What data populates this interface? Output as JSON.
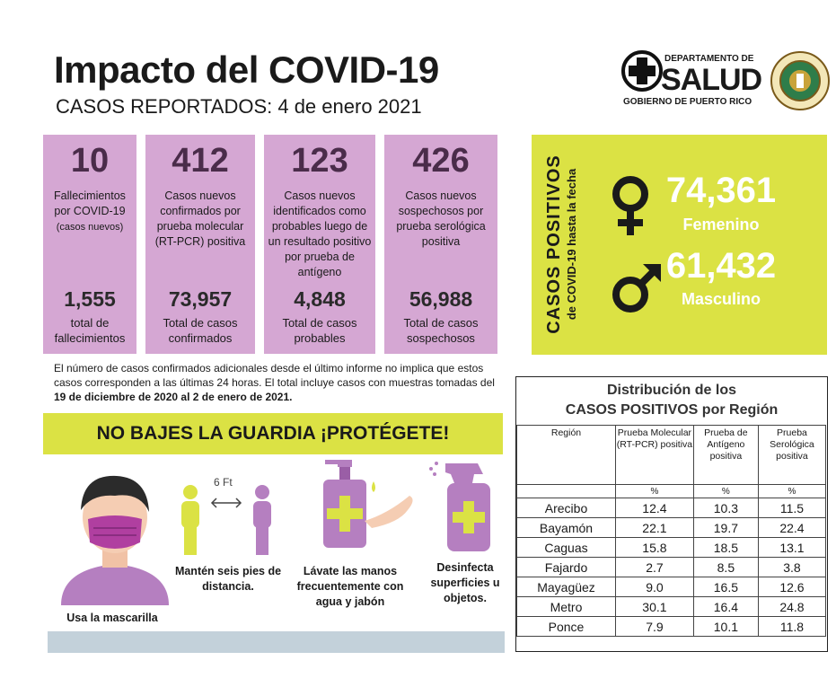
{
  "header": {
    "title": "Impacto del COVID-19",
    "subtitle": "CASOS REPORTADOS: 4 de enero 2021",
    "logo": {
      "line1": "DEPARTAMENTO DE",
      "line2": "SALUD",
      "line3": "GOBIERNO DE PUERTO RICO"
    }
  },
  "stats": [
    {
      "big": "10",
      "desc": "Fallecimientos por COVID-19",
      "desc_small": "(casos nuevos)",
      "total": "1,555",
      "total_label": "total de fallecimientos"
    },
    {
      "big": "412",
      "desc": "Casos nuevos confirmados por prueba molecular (RT-PCR) positiva",
      "total": "73,957",
      "total_label": "Total de casos confirmados"
    },
    {
      "big": "123",
      "desc": "Casos nuevos identificados como probables luego de un resultado positivo por prueba de antígeno",
      "total": "4,848",
      "total_label": "Total de casos probables"
    },
    {
      "big": "426",
      "desc": "Casos nuevos sospechosos por prueba serológica positiva",
      "total": "56,988",
      "total_label": "Total de casos sospechosos"
    }
  ],
  "positives": {
    "vertical_title": "CASOS POSITIVOS",
    "vertical_subtitle": "de COVID-19 hasta la fecha",
    "female_value": "74,361",
    "female_label": "Femenino",
    "male_value": "61,432",
    "male_label": "Masculino",
    "color": "#dbe244"
  },
  "note": {
    "text": "El número de casos confirmados adicionales desde el último informe no implica que estos casos corresponden a las últimas 24 horas.  El total incluye casos con muestras tomadas del ",
    "dates": "19 de diciembre de 2020 al 2 de enero de 2021."
  },
  "prevention": {
    "banner": "NO BAJES LA GUARDIA ¡PROTÉGETE!",
    "distance_label": "6 Ft",
    "items": [
      "Usa la mascarilla",
      "Mantén seis pies de distancia.",
      "Lávate las manos frecuentemente con agua y jabón",
      "Desinfecta superficies u objetos."
    ]
  },
  "distribution": {
    "title1": "Distribución de los",
    "title2": "CASOS POSITIVOS por Región",
    "columns": [
      "Región",
      "Prueba Molecular (RT-PCR) positiva",
      "Prueba de Antígeno positiva",
      "Prueba Serológica positiva"
    ],
    "units": [
      "%",
      "%",
      "%"
    ],
    "rows": [
      [
        "Arecibo",
        "12.4",
        "10.3",
        "11.5"
      ],
      [
        "Bayamón",
        "22.1",
        "19.7",
        "22.4"
      ],
      [
        "Caguas",
        "15.8",
        "18.5",
        "13.1"
      ],
      [
        "Fajardo",
        "2.7",
        "8.5",
        "3.8"
      ],
      [
        "Mayagüez",
        "9.0",
        "16.5",
        "12.6"
      ],
      [
        "Metro",
        "30.1",
        "16.4",
        "24.8"
      ],
      [
        "Ponce",
        "7.9",
        "10.1",
        "11.8"
      ]
    ]
  },
  "colors": {
    "card": "#d5a7d3",
    "accent": "#dbe244",
    "footer_bar": "#c3d1da"
  }
}
